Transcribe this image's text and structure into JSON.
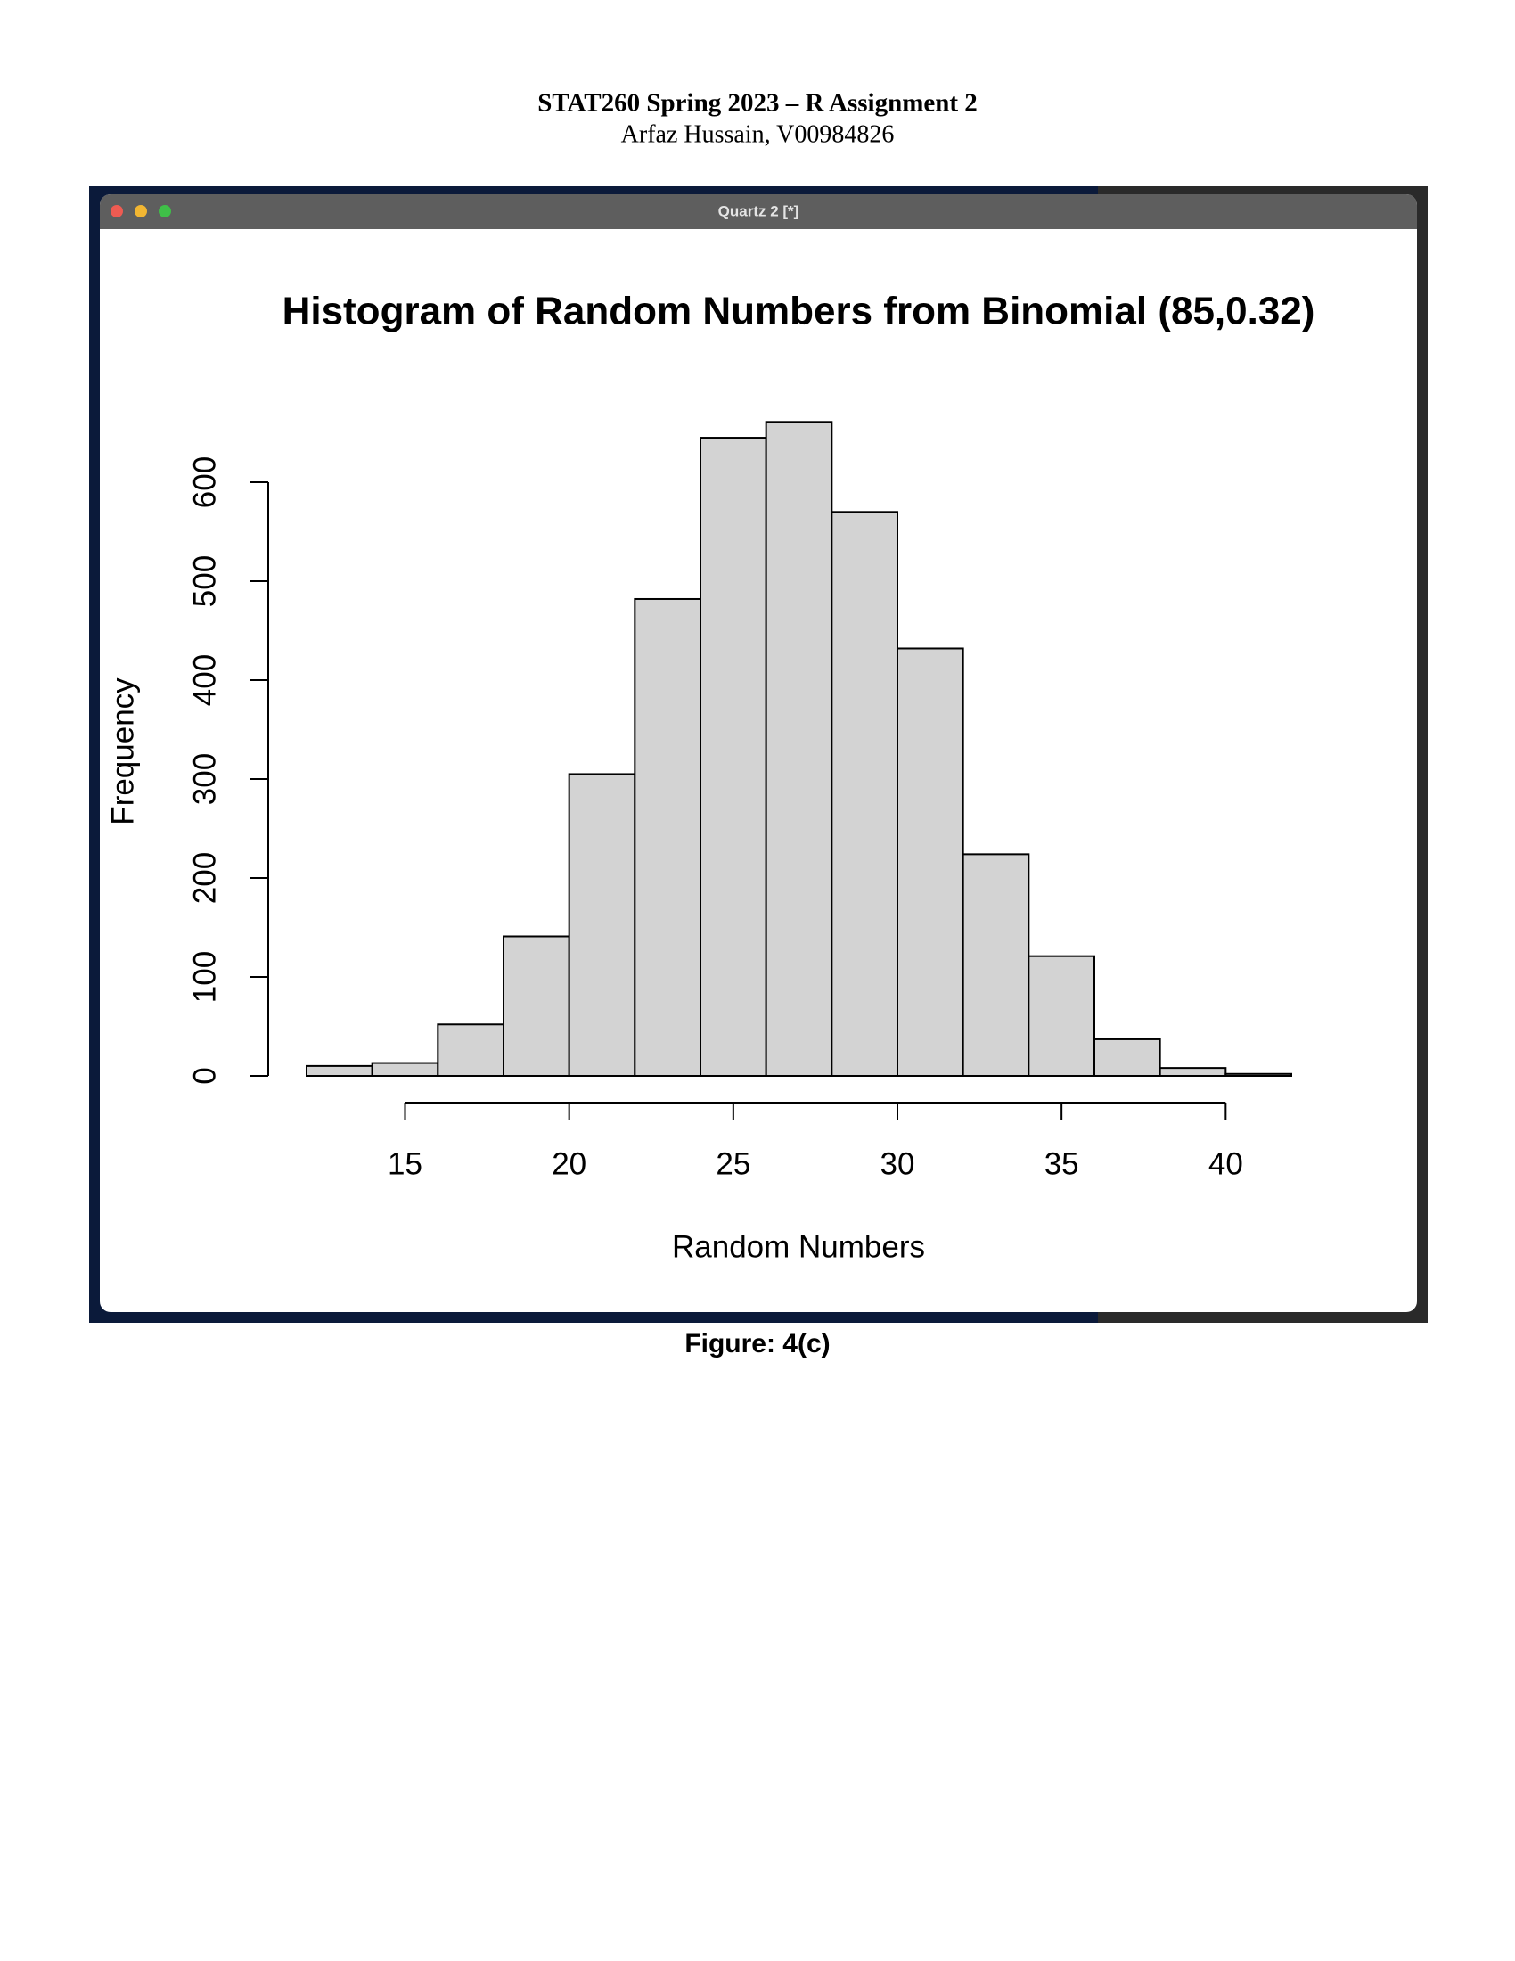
{
  "header": {
    "title": "STAT260 Spring 2023 – R Assignment 2",
    "subtitle": "Arfaz Hussain, V00984826"
  },
  "window": {
    "title": "Quartz 2 [*]"
  },
  "chart_data": {
    "type": "histogram",
    "title": "Histogram of Random Numbers from Binomial (85,0.32)",
    "x_label": "Random Numbers",
    "y_label": "Frequency",
    "bins": [
      12,
      14,
      16,
      18,
      20,
      22,
      24,
      26,
      28,
      30,
      32,
      34,
      36,
      38,
      40,
      42
    ],
    "values": [
      10,
      13,
      52,
      141,
      305,
      482,
      645,
      661,
      570,
      432,
      224,
      121,
      37,
      8,
      2
    ],
    "color": "#d3d3d3",
    "xlim": [
      12,
      42
    ],
    "ylim": [
      0,
      700
    ],
    "xticks": [
      15,
      20,
      25,
      30,
      35,
      40
    ],
    "yticks": [
      0,
      100,
      200,
      300,
      400,
      500,
      600
    ]
  },
  "caption": "Figure: 4(c)"
}
